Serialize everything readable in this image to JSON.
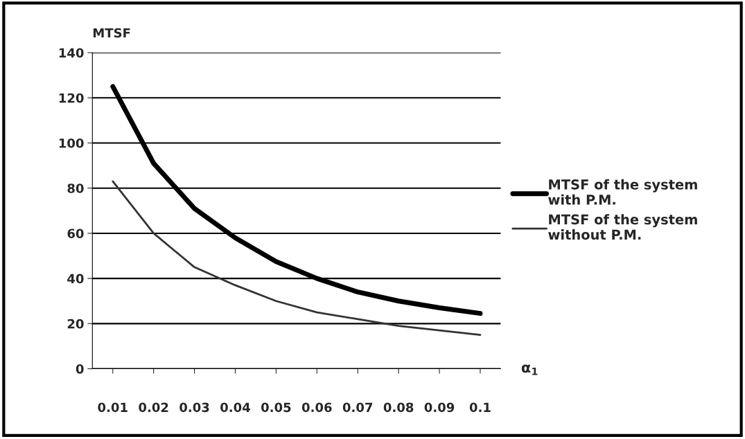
{
  "chart_data": {
    "type": "line",
    "xlabel": "α$_{1}$",
    "ylabel": "MTSF",
    "categories": [
      "0.01",
      "0.02",
      "0.03",
      "0.04",
      "0.05",
      "0.06",
      "0.07",
      "0.08",
      "0.09",
      "0.1"
    ],
    "series": [
      {
        "name": "MTSF of the system with P.M.",
        "color": "#000000",
        "values": [
          125,
          91,
          71,
          58,
          47.5,
          40,
          34,
          30,
          27,
          24.5
        ]
      },
      {
        "name": "MTSF of the system without P.M.",
        "color": "#333333",
        "values": [
          83,
          60,
          45,
          37,
          30,
          25,
          22,
          19,
          17,
          15
        ]
      }
    ],
    "ylim": [
      0,
      140
    ],
    "yticks": [
      0,
      20,
      40,
      60,
      80,
      100,
      120,
      140
    ],
    "grid": "y",
    "legend": "right",
    "marker": "none",
    "line_style": "solid"
  }
}
